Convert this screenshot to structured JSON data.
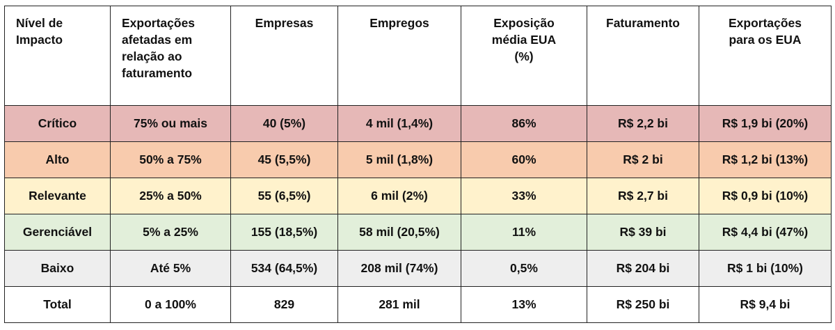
{
  "headers": [
    "Nível de Impacto",
    "Exportações afetadas em relação ao faturamento",
    "Empresas",
    "Empregos",
    "Exposição média EUA (%)",
    "Faturamento",
    "Exportações para os EUA"
  ],
  "rows": [
    {
      "key": "critico",
      "color": "#e6b8b7",
      "cells": [
        "Crítico",
        "75% ou mais",
        "40 (5%)",
        "4 mil (1,4%)",
        "86%",
        "R$ 2,2 bi",
        "R$ 1,9 bi (20%)"
      ]
    },
    {
      "key": "alto",
      "color": "#f8cbad",
      "cells": [
        "Alto",
        "50% a 75%",
        "45 (5,5%)",
        "5 mil (1,8%)",
        "60%",
        "R$ 2 bi",
        "R$ 1,2 bi (13%)"
      ]
    },
    {
      "key": "relevante",
      "color": "#fff2cc",
      "cells": [
        "Relevante",
        "25% a 50%",
        "55 (6,5%)",
        "6 mil (2%)",
        "33%",
        "R$ 2,7 bi",
        "R$ 0,9 bi (10%)"
      ]
    },
    {
      "key": "gerenciavel",
      "color": "#e2efda",
      "cells": [
        "Gerenciável",
        "5% a 25%",
        "155 (18,5%)",
        "58 mil (20,5%)",
        "11%",
        "R$ 39 bi",
        "R$ 4,4 bi (47%)"
      ]
    },
    {
      "key": "baixo",
      "color": "#eeeeee",
      "cells": [
        "Baixo",
        "Até 5%",
        "534 (64,5%)",
        "208 mil (74%)",
        "0,5%",
        "R$ 204 bi",
        "R$ 1 bi (10%)"
      ]
    },
    {
      "key": "total",
      "color": "#ffffff",
      "cells": [
        "Total",
        "0 a 100%",
        "829",
        "281 mil",
        "13%",
        "R$ 250 bi",
        "R$ 9,4 bi"
      ]
    }
  ]
}
